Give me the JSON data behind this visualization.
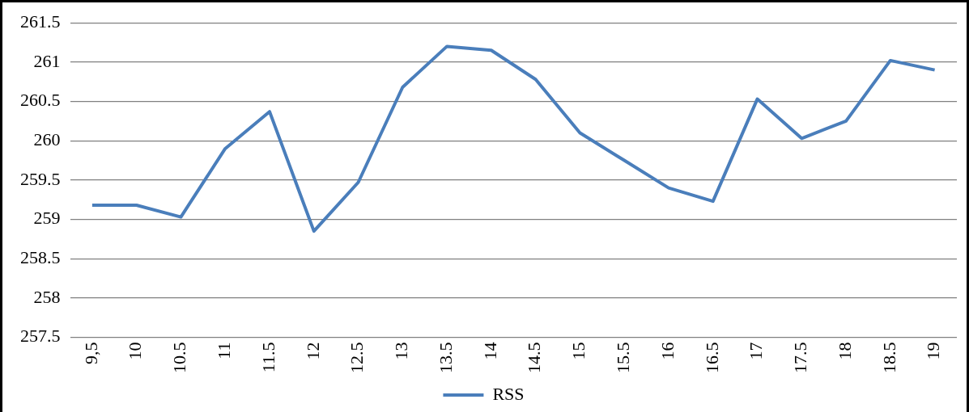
{
  "chart_data": {
    "type": "line",
    "categories": [
      "9,5",
      "10",
      "10.5",
      "11",
      "11.5",
      "12",
      "12.5",
      "13",
      "13.5",
      "14",
      "14.5",
      "15",
      "15.5",
      "16",
      "16.5",
      "17",
      "17.5",
      "18",
      "18.5",
      "19"
    ],
    "series": [
      {
        "name": "RSS",
        "color": "#4a7ebb",
        "values": [
          259.18,
          259.18,
          259.03,
          259.9,
          260.37,
          258.85,
          259.47,
          260.68,
          261.2,
          261.15,
          260.78,
          260.1,
          259.75,
          259.4,
          259.23,
          260.53,
          260.03,
          260.25,
          261.02,
          260.9
        ]
      }
    ],
    "ylim": [
      257.5,
      261.5
    ],
    "yticks": [
      257.5,
      258,
      258.5,
      259,
      259.5,
      260,
      260.5,
      261,
      261.5
    ],
    "grid": "y",
    "legend": "bottom",
    "marker": "none",
    "line_style": "solid"
  }
}
